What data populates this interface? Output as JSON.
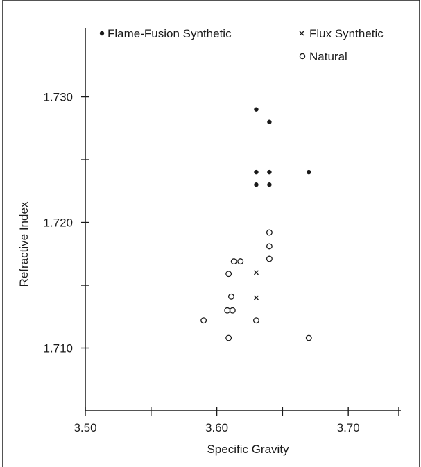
{
  "chart_data": {
    "type": "scatter",
    "title": "",
    "xlabel": "Specific Gravity",
    "ylabel": "Refractive Index",
    "xlim": [
      3.5,
      3.74
    ],
    "ylim": [
      1.705,
      1.7355
    ],
    "x_ticks": [
      3.5,
      3.55,
      3.6,
      3.65,
      3.7
    ],
    "x_tick_labels": [
      "3.50",
      "",
      "3.60",
      "",
      "3.70"
    ],
    "y_ticks": [
      1.71,
      1.715,
      1.72,
      1.725,
      1.73
    ],
    "y_tick_labels": [
      "1.710",
      "",
      "1.720",
      "",
      "1.730"
    ],
    "grid": false,
    "legend_position": "top",
    "series": [
      {
        "name": "Flame-Fusion Synthetic",
        "marker": "filled-circle",
        "color": "#1a1a1a",
        "points": [
          {
            "x": 3.63,
            "y": 1.729
          },
          {
            "x": 3.64,
            "y": 1.728
          },
          {
            "x": 3.63,
            "y": 1.724
          },
          {
            "x": 3.64,
            "y": 1.724
          },
          {
            "x": 3.67,
            "y": 1.724
          },
          {
            "x": 3.63,
            "y": 1.723
          },
          {
            "x": 3.64,
            "y": 1.723
          }
        ]
      },
      {
        "name": "Flux Synthetic",
        "marker": "x",
        "color": "#1a1a1a",
        "points": [
          {
            "x": 3.63,
            "y": 1.716
          },
          {
            "x": 3.63,
            "y": 1.714
          }
        ]
      },
      {
        "name": "Natural",
        "marker": "open-circle",
        "color": "#1a1a1a",
        "points": [
          {
            "x": 3.64,
            "y": 1.7192
          },
          {
            "x": 3.64,
            "y": 1.7181
          },
          {
            "x": 3.64,
            "y": 1.7171
          },
          {
            "x": 3.613,
            "y": 1.7169
          },
          {
            "x": 3.618,
            "y": 1.7169
          },
          {
            "x": 3.609,
            "y": 1.7159
          },
          {
            "x": 3.611,
            "y": 1.7141
          },
          {
            "x": 3.608,
            "y": 1.713
          },
          {
            "x": 3.612,
            "y": 1.713
          },
          {
            "x": 3.59,
            "y": 1.7122
          },
          {
            "x": 3.63,
            "y": 1.7122
          },
          {
            "x": 3.609,
            "y": 1.7108
          },
          {
            "x": 3.67,
            "y": 1.7108
          }
        ]
      }
    ]
  }
}
